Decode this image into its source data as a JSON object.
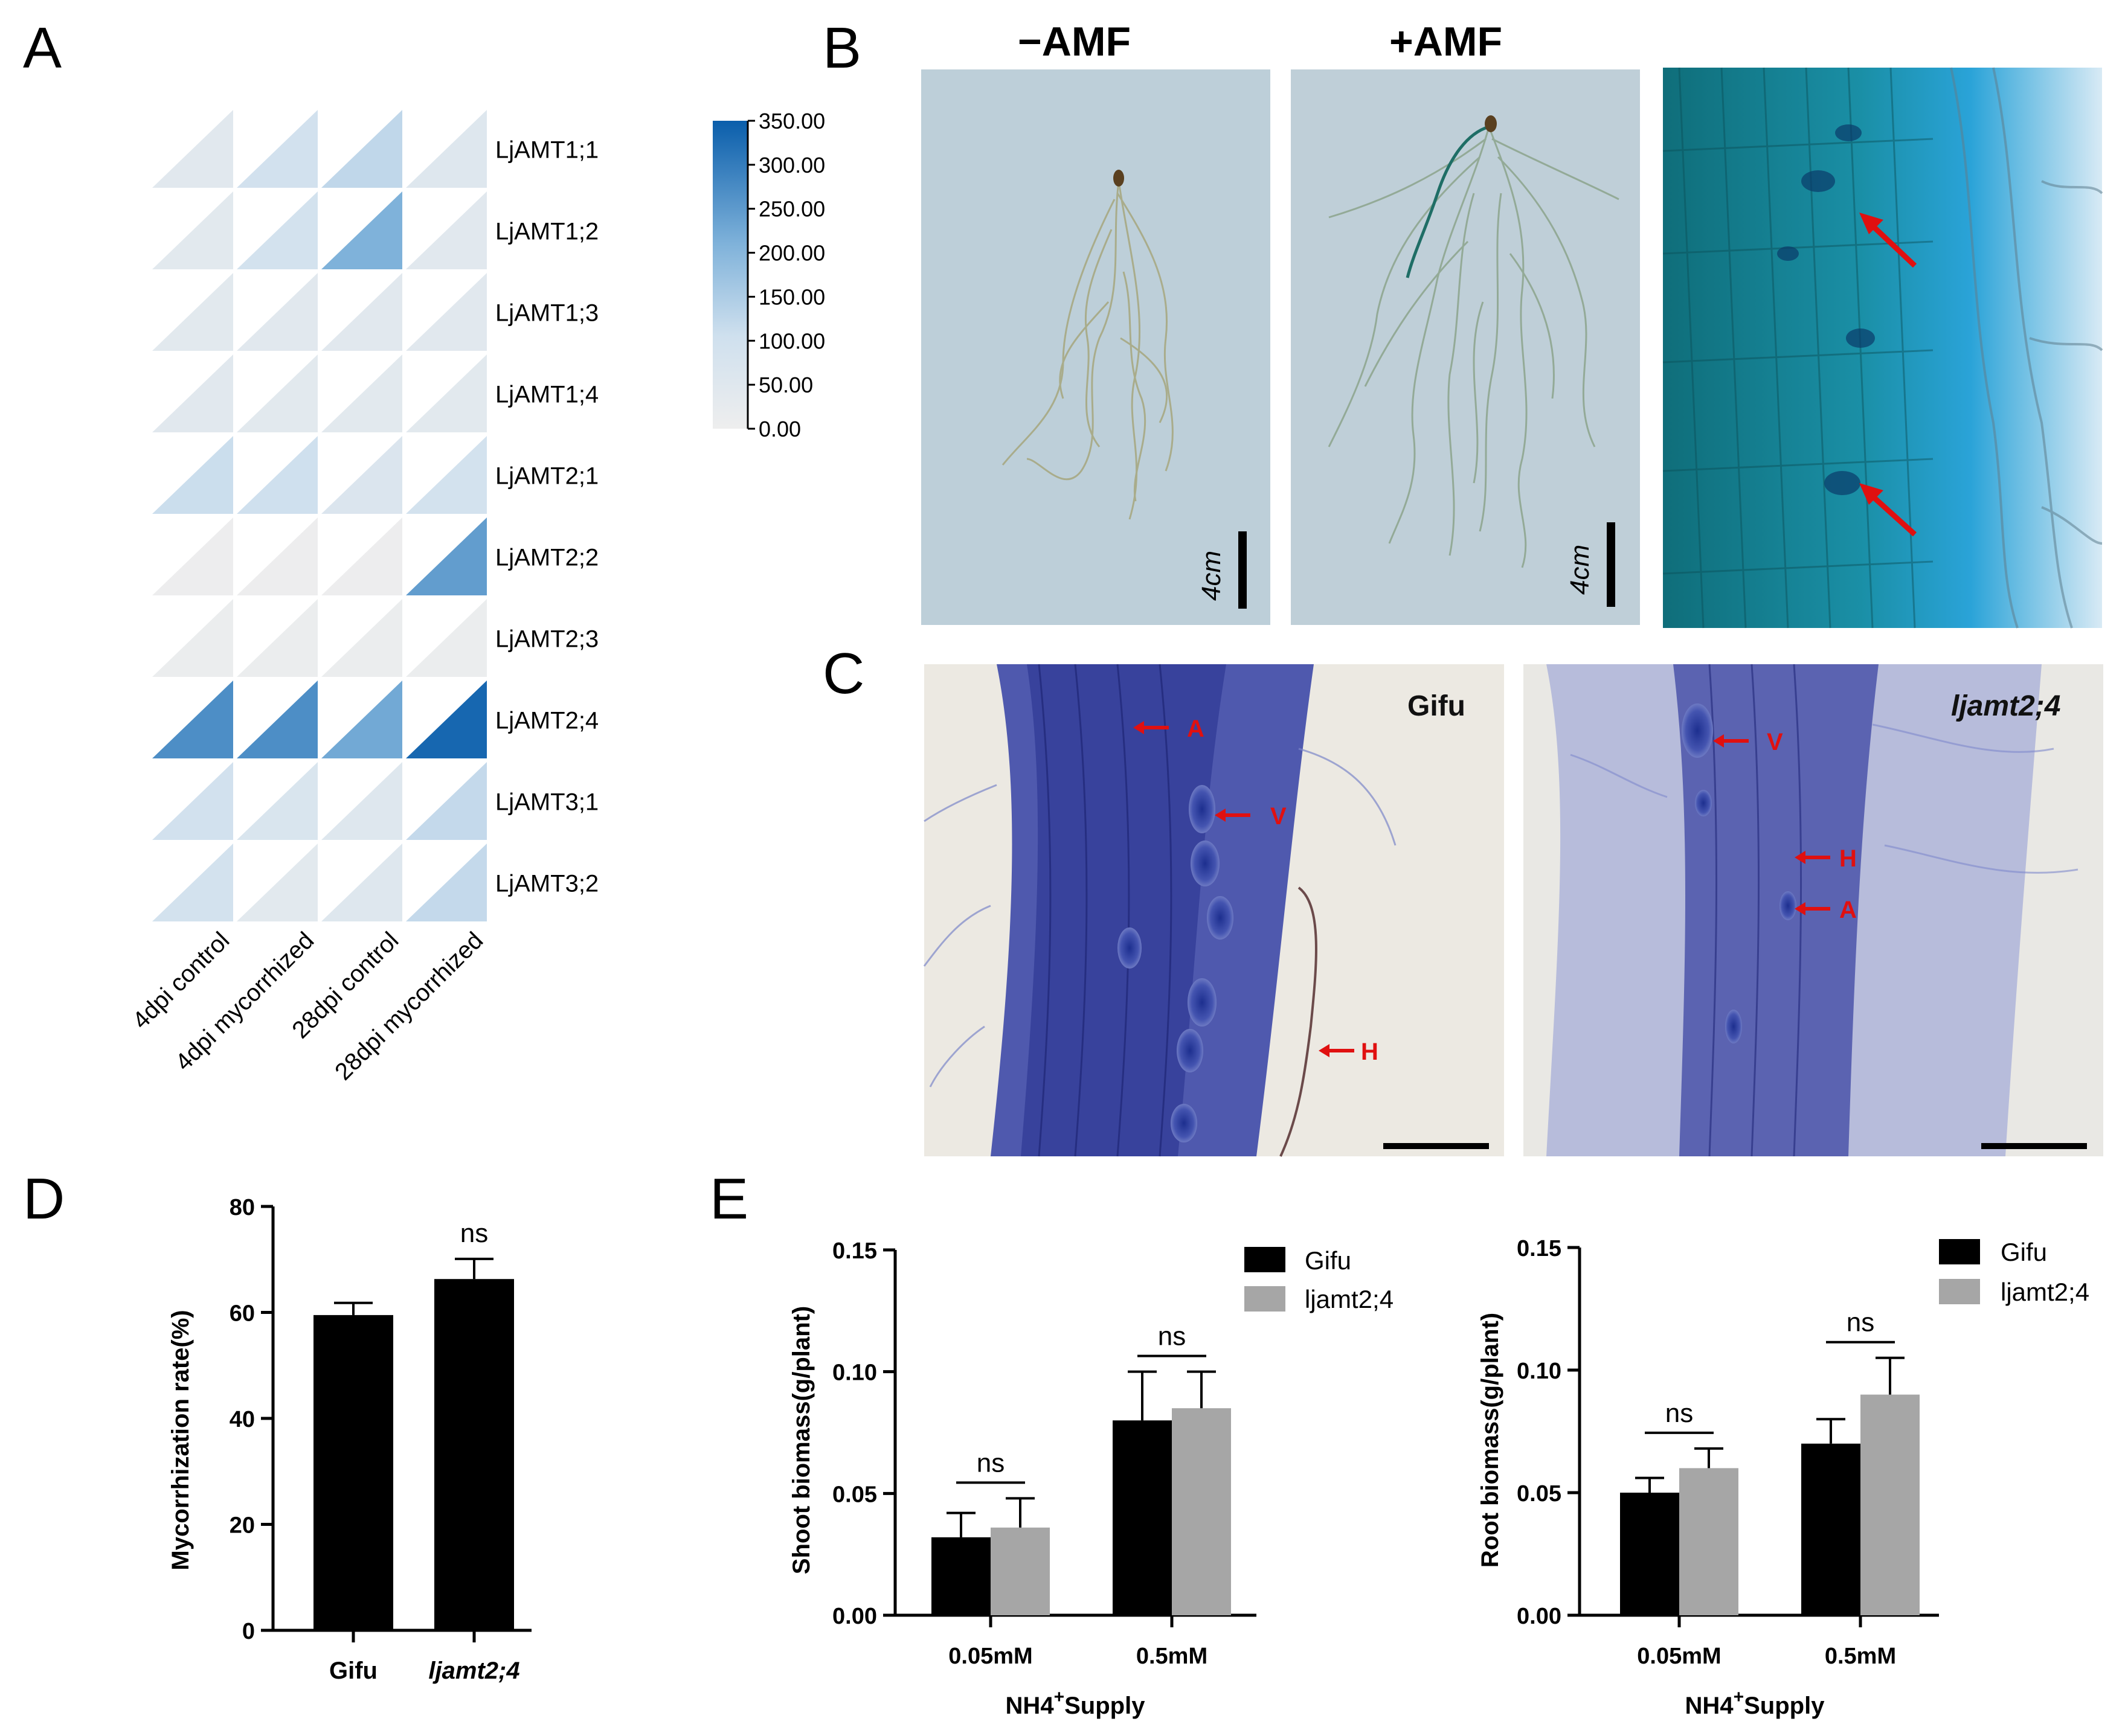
{
  "panels": {
    "A": "A",
    "B": "B",
    "C": "C",
    "D": "D",
    "E": "E"
  },
  "heatmap": {
    "genes": [
      "LjAMT1;1",
      "LjAMT1;2",
      "LjAMT1;3",
      "LjAMT1;4",
      "LjAMT2;1",
      "LjAMT2;2",
      "LjAMT2;3",
      "LjAMT2;4",
      "LjAMT3;1",
      "LjAMT3;2"
    ],
    "conditions": [
      "4dpi control",
      "4dpi mycorrhized",
      "28dpi control",
      "28dpi mycorrhized"
    ],
    "values": [
      [
        45,
        95,
        125,
        55
      ],
      [
        40,
        90,
        210,
        45
      ],
      [
        40,
        45,
        45,
        45
      ],
      [
        45,
        40,
        40,
        40
      ],
      [
        110,
        105,
        65,
        90
      ],
      [
        5,
        5,
        5,
        245
      ],
      [
        10,
        10,
        10,
        10
      ],
      [
        270,
        270,
        225,
        335
      ],
      [
        95,
        70,
        55,
        120
      ],
      [
        90,
        40,
        55,
        120
      ]
    ],
    "colorbar": {
      "ticks": [
        "350.00",
        "300.00",
        "250.00",
        "200.00",
        "150.00",
        "100.00",
        "50.00",
        "0.00"
      ],
      "min": 0,
      "max": 350,
      "low_color": "#eeeeee",
      "high_color": "#0a5eab"
    }
  },
  "photos_b": {
    "minus": "−AMF",
    "plus": "+AMF",
    "scale": "4cm"
  },
  "photos_c": {
    "left_label": "Gifu",
    "right_label": "ljamt2;4",
    "left_markers": [
      "A",
      "V",
      "H"
    ],
    "right_markers": [
      "V",
      "H",
      "A"
    ]
  },
  "chart_data": [
    {
      "type": "bar",
      "panel": "D",
      "categories": [
        "Gifu",
        "ljamt2;4"
      ],
      "values": [
        59.5,
        66.3
      ],
      "errors": [
        2.3,
        3.8
      ],
      "ylabel": "Mycorrhization rate(%)",
      "ylim": [
        0,
        80
      ],
      "yticks": [
        "0",
        "20",
        "40",
        "60",
        "80"
      ],
      "significance": [
        "ns"
      ],
      "color": "#000000"
    },
    {
      "type": "bar",
      "panel": "E-left",
      "categories": [
        "0.05mM",
        "0.5mM"
      ],
      "series": [
        {
          "name": "Gifu",
          "values": [
            0.032,
            0.08
          ],
          "errors": [
            0.01,
            0.02
          ],
          "color": "#000000"
        },
        {
          "name": "ljamt2;4",
          "values": [
            0.036,
            0.085
          ],
          "errors": [
            0.012,
            0.015
          ],
          "color": "#a6a6a6"
        }
      ],
      "xlabel": "NH4+Supply",
      "ylabel": "Shoot biomass(g/plant)",
      "ylim": [
        0,
        0.15
      ],
      "yticks": [
        "0.00",
        "0.05",
        "0.10",
        "0.15"
      ],
      "significance": [
        "ns",
        "ns"
      ],
      "legend": "top-right"
    },
    {
      "type": "bar",
      "panel": "E-right",
      "categories": [
        "0.05mM",
        "0.5mM"
      ],
      "series": [
        {
          "name": "Gifu",
          "values": [
            0.05,
            0.07
          ],
          "errors": [
            0.006,
            0.01
          ],
          "color": "#000000"
        },
        {
          "name": "ljamt2;4",
          "values": [
            0.06,
            0.09
          ],
          "errors": [
            0.008,
            0.015
          ],
          "color": "#a6a6a6"
        }
      ],
      "xlabel": "NH4+Supply",
      "ylabel": "Root biomass(g/plant)",
      "ylim": [
        0,
        0.15
      ],
      "yticks": [
        "0.00",
        "0.05",
        "0.10",
        "0.15"
      ],
      "significance": [
        "ns",
        "ns"
      ],
      "legend": "top-right"
    }
  ],
  "text": {
    "d_ylabel": "Mycorrhization rate(%)",
    "d_x1": "Gifu",
    "d_x2": "ljamt2;4",
    "e_xlabel_main": "NH4",
    "e_xlabel_sup": "+",
    "e_xlabel_tail": "Supply",
    "e_left_ylabel": "Shoot biomass(g/plant)",
    "e_right_ylabel": "Root biomass(g/plant)",
    "legend_gifu": "Gifu",
    "legend_mut": "ljamt2;4",
    "ns": "ns"
  }
}
